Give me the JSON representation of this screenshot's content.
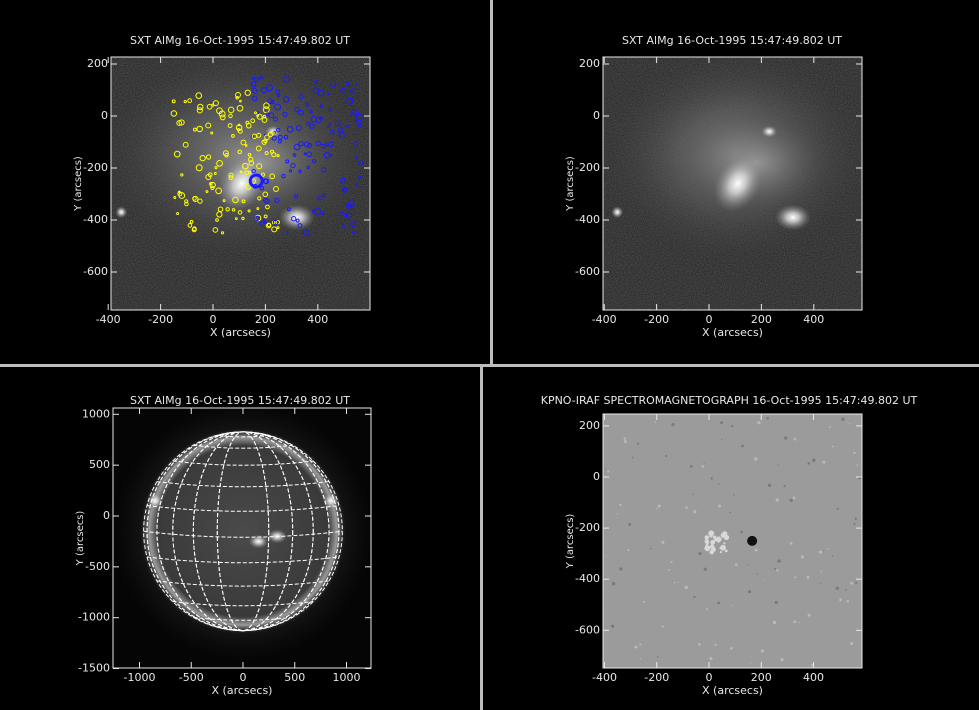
{
  "panels": [
    {
      "title": "SXT AlMg 16-Oct-1995 15:47:49.802 UT",
      "x_label": "X (arcsecs)",
      "y_label": "Y (arcsecs)",
      "xticks": [
        -400,
        -200,
        0,
        200,
        400
      ],
      "yticks": [
        200,
        0,
        -200,
        -400,
        -600
      ]
    },
    {
      "title": "SXT AlMg 16-Oct-1995 15:47:49.802 UT",
      "x_label": "X (arcsecs)",
      "y_label": "Y (arcsecs)",
      "xticks": [
        -400,
        -200,
        0,
        200,
        400
      ],
      "yticks": [
        200,
        0,
        -200,
        -400,
        -600
      ]
    },
    {
      "title": "SXT AlMg 16-Oct-1995 15:47:49.802 UT",
      "x_label": "X (arcsecs)",
      "y_label": "Y (arcsecs)",
      "xticks": [
        -1000,
        -500,
        0,
        500,
        1000
      ],
      "yticks": [
        1000,
        500,
        0,
        -500,
        -1000,
        -1500
      ]
    },
    {
      "title": "KPNO-IRAF SPECTROMAGNETOGRAPH 16-Oct-1995 15:47:49.802 UT",
      "x_label": "X (arcsecs)",
      "y_label": "Y (arcsecs)",
      "xticks": [
        -400,
        -200,
        0,
        200,
        400
      ],
      "yticks": [
        200,
        0,
        -200,
        -400,
        -600
      ]
    }
  ]
}
